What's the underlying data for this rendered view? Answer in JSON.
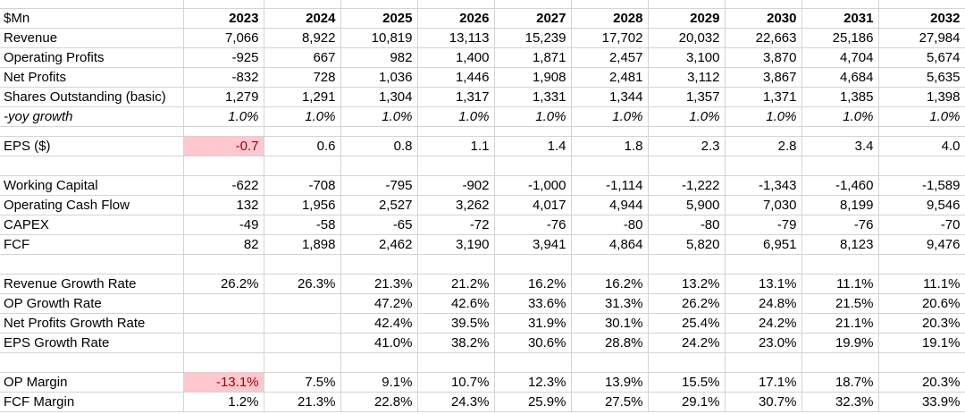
{
  "colors": {
    "highlight_bg": "#FFC7CE",
    "highlight_text": "#9C0006",
    "gridline": "#D4D4D4",
    "text": "#000000",
    "background": "#FFFFFF"
  },
  "table": {
    "unit_label": "$Mn",
    "years": [
      "2023",
      "2024",
      "2025",
      "2026",
      "2027",
      "2028",
      "2029",
      "2030",
      "2031",
      "2032"
    ],
    "rows": [
      {
        "label": "Revenue",
        "values": [
          "7,066",
          "8,922",
          "10,819",
          "13,113",
          "15,239",
          "17,702",
          "20,032",
          "22,663",
          "25,186",
          "27,984"
        ]
      },
      {
        "label": "Operating Profits",
        "values": [
          "-925",
          "667",
          "982",
          "1,400",
          "1,871",
          "2,457",
          "3,100",
          "3,870",
          "4,704",
          "5,674"
        ]
      },
      {
        "label": "Net Profits",
        "values": [
          "-832",
          "728",
          "1,036",
          "1,446",
          "1,908",
          "2,481",
          "3,112",
          "3,867",
          "4,684",
          "5,635"
        ]
      },
      {
        "label": "Shares Outstanding (basic)",
        "values": [
          "1,279",
          "1,291",
          "1,304",
          "1,317",
          "1,331",
          "1,344",
          "1,357",
          "1,371",
          "1,385",
          "1,398"
        ]
      },
      {
        "label": "-yoy growth",
        "italic": true,
        "values": [
          "1.0%",
          "1.0%",
          "1.0%",
          "1.0%",
          "1.0%",
          "1.0%",
          "1.0%",
          "1.0%",
          "1.0%",
          "1.0%"
        ]
      },
      {
        "spacer": "short"
      },
      {
        "label": "EPS ($)",
        "highlight": [
          0
        ],
        "values": [
          "-0.7",
          "0.6",
          "0.8",
          "1.1",
          "1.4",
          "1.8",
          "2.3",
          "2.8",
          "3.4",
          "4.0"
        ]
      },
      {
        "spacer": "normal"
      },
      {
        "label": "Working Capital",
        "values": [
          "-622",
          "-708",
          "-795",
          "-902",
          "-1,000",
          "-1,114",
          "-1,222",
          "-1,343",
          "-1,460",
          "-1,589"
        ]
      },
      {
        "label": "Operating Cash Flow",
        "values": [
          "132",
          "1,956",
          "2,527",
          "3,262",
          "4,017",
          "4,944",
          "5,900",
          "7,030",
          "8,199",
          "9,546"
        ]
      },
      {
        "label": "CAPEX",
        "values": [
          "-49",
          "-58",
          "-65",
          "-72",
          "-76",
          "-80",
          "-80",
          "-79",
          "-76",
          "-70"
        ]
      },
      {
        "label": "FCF",
        "values": [
          "82",
          "1,898",
          "2,462",
          "3,190",
          "3,941",
          "4,864",
          "5,820",
          "6,951",
          "8,123",
          "9,476"
        ]
      },
      {
        "spacer": "normal"
      },
      {
        "label": "Revenue Growth Rate",
        "values": [
          "26.2%",
          "26.3%",
          "21.3%",
          "21.2%",
          "16.2%",
          "16.2%",
          "13.2%",
          "13.1%",
          "11.1%",
          "11.1%"
        ]
      },
      {
        "label": "OP Growth Rate",
        "values": [
          "",
          "",
          "47.2%",
          "42.6%",
          "33.6%",
          "31.3%",
          "26.2%",
          "24.8%",
          "21.5%",
          "20.6%"
        ]
      },
      {
        "label": "Net Profits Growth Rate",
        "values": [
          "",
          "",
          "42.4%",
          "39.5%",
          "31.9%",
          "30.1%",
          "25.4%",
          "24.2%",
          "21.1%",
          "20.3%"
        ]
      },
      {
        "label": "EPS Growth Rate",
        "values": [
          "",
          "",
          "41.0%",
          "38.2%",
          "30.6%",
          "28.8%",
          "24.2%",
          "23.0%",
          "19.9%",
          "19.1%"
        ]
      },
      {
        "spacer": "normal"
      },
      {
        "label": "OP Margin",
        "highlight": [
          0
        ],
        "values": [
          "-13.1%",
          "7.5%",
          "9.1%",
          "10.7%",
          "12.3%",
          "13.9%",
          "15.5%",
          "17.1%",
          "18.7%",
          "20.3%"
        ]
      },
      {
        "label": "FCF Margin",
        "values": [
          "1.2%",
          "21.3%",
          "22.8%",
          "24.3%",
          "25.9%",
          "27.5%",
          "29.1%",
          "30.7%",
          "32.3%",
          "33.9%"
        ]
      }
    ]
  }
}
